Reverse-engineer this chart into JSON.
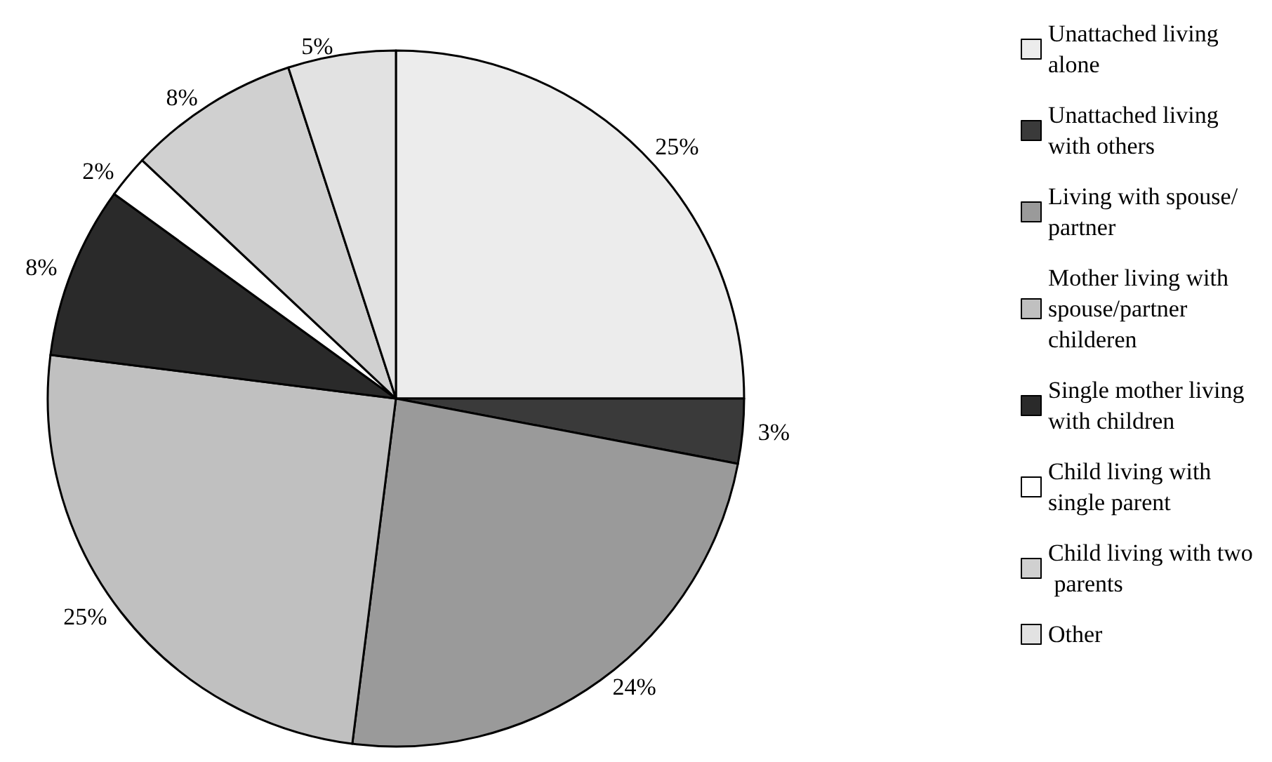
{
  "chart_data": {
    "type": "pie",
    "categories": [
      "Unattached living alone",
      "Unattached living with others",
      "Living with spouse/partner",
      "Mother living with spouse/partner childeren",
      "Single mother living with children",
      "Child living with single parent",
      "Child living with two parents",
      "Other"
    ],
    "values": [
      25,
      3,
      24,
      25,
      8,
      2,
      8,
      5
    ],
    "value_labels": [
      "25%",
      "3%",
      "24%",
      "25%",
      "8%",
      "2%",
      "8%",
      "5%"
    ],
    "colors": [
      "#ececec",
      "#3a3a3a",
      "#9a9a9a",
      "#c0c0c0",
      "#2a2a2a",
      "#ffffff",
      "#d0d0d0",
      "#e2e2e2"
    ],
    "legend": "right"
  }
}
